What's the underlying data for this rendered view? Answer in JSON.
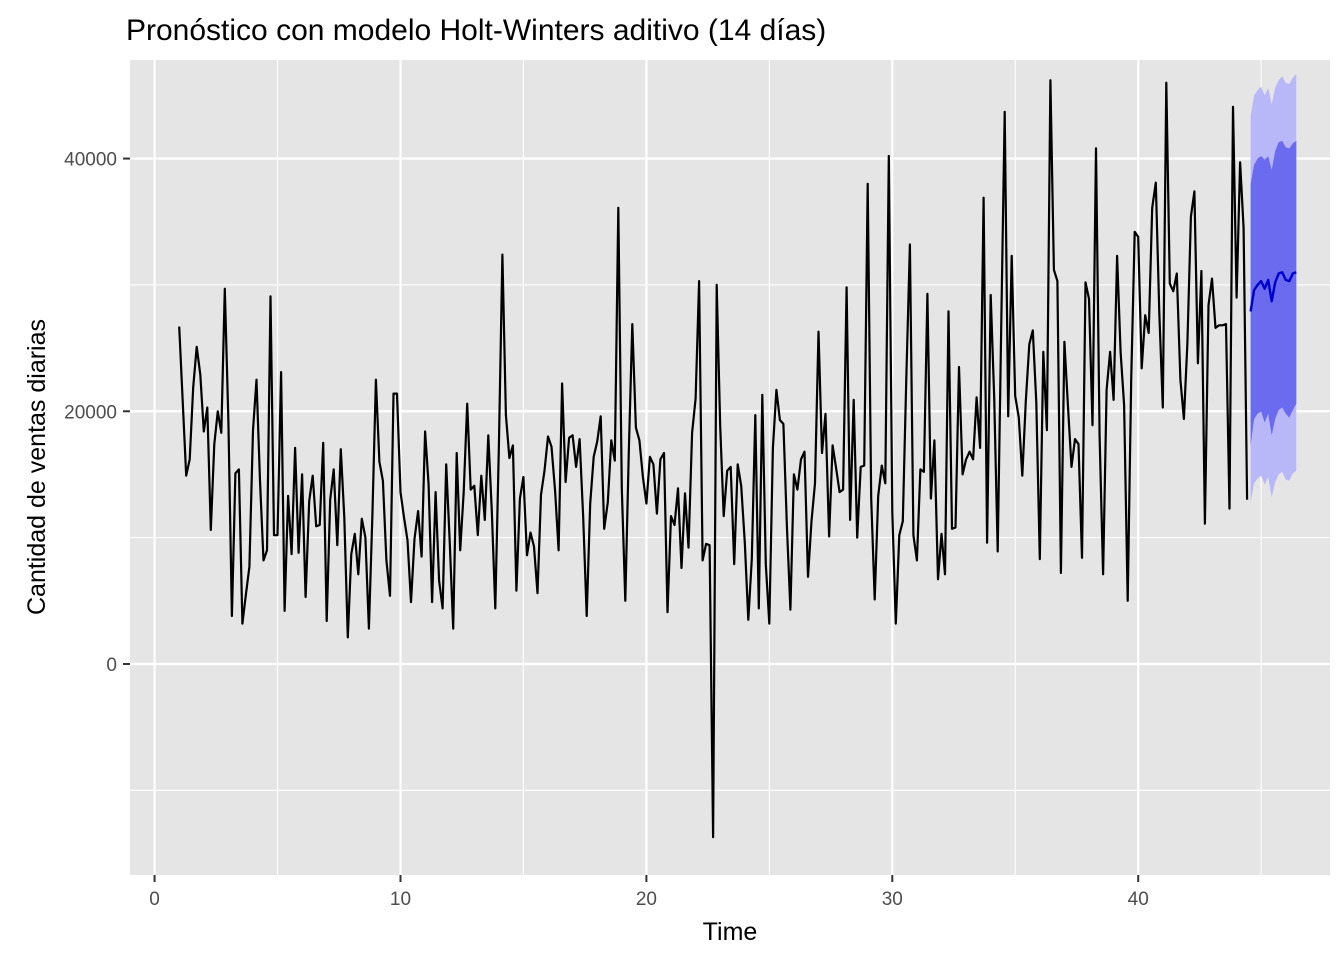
{
  "chart_data": {
    "type": "line",
    "title": "Pronóstico con modelo Holt-Winters aditivo (14 días)",
    "xlabel": "Time",
    "ylabel": "Cantidad de ventas diarias",
    "xlim": [
      -1.0,
      47.8
    ],
    "ylim": [
      -16700,
      47800
    ],
    "x_ticks": [
      0,
      10,
      20,
      30,
      40
    ],
    "y_ticks": [
      0,
      20000,
      40000
    ],
    "x_tick_labels": [
      "0",
      "10",
      "20",
      "30",
      "40"
    ],
    "y_tick_labels": [
      "0",
      "20000",
      "40000"
    ],
    "grid": true,
    "legend": "none",
    "colors": {
      "panel": "#e5e5e5",
      "grid": "#ffffff",
      "observed": "#000000",
      "forecast": "#0000cc",
      "band80": "#6b6bf0",
      "band95": "#b8b8f8"
    },
    "observed": {
      "x_start": 1,
      "x_step": 0.142857,
      "values": [
        26700,
        20800,
        14900,
        16200,
        21900,
        25100,
        22900,
        18400,
        20300,
        10600,
        17400,
        20000,
        18300,
        29700,
        19200,
        3800,
        15100,
        15400,
        3200,
        5500,
        7700,
        18500,
        22500,
        14500,
        8200,
        9000,
        29100,
        10200,
        10200,
        23100,
        4200,
        13300,
        8700,
        17100,
        8800,
        15000,
        5300,
        12900,
        14900,
        10900,
        11000,
        17500,
        3400,
        13000,
        15400,
        9400,
        17000,
        11600,
        2100,
        8700,
        10300,
        7100,
        11500,
        10000,
        2800,
        11800,
        22500,
        16000,
        14500,
        8200,
        5400,
        21400,
        21400,
        13600,
        11600,
        9800,
        4900,
        9900,
        12100,
        8500,
        18400,
        14200,
        4900,
        13600,
        6600,
        4400,
        15800,
        9700,
        2800,
        16700,
        9000,
        13600,
        20600,
        13800,
        14100,
        10200,
        14900,
        11400,
        18100,
        12100,
        4400,
        17300,
        32400,
        19700,
        16300,
        17300,
        5800,
        13100,
        14800,
        8600,
        10400,
        9300,
        5600,
        13400,
        15300,
        18000,
        17200,
        13700,
        9000,
        22200,
        14400,
        17900,
        18100,
        15600,
        17800,
        11600,
        3800,
        12700,
        16400,
        17600,
        19600,
        10700,
        12800,
        17700,
        16100,
        36100,
        13900,
        5000,
        16800,
        26900,
        18700,
        17700,
        14800,
        12700,
        16400,
        15800,
        11900,
        16200,
        16700,
        4100,
        11700,
        11000,
        13900,
        7600,
        13500,
        9200,
        18300,
        21000,
        30300,
        8200,
        9500,
        9400,
        -13700,
        30000,
        18800,
        11700,
        15300,
        15600,
        7900,
        15800,
        14100,
        9600,
        3500,
        8300,
        19700,
        4400,
        21300,
        7900,
        3200,
        17100,
        21700,
        19300,
        19000,
        10900,
        4300,
        15000,
        13800,
        16200,
        16800,
        6900,
        11300,
        14300,
        26300,
        16700,
        19800,
        10100,
        17300,
        15500,
        13600,
        13800,
        29800,
        11400,
        20900,
        10000,
        15600,
        15700,
        38000,
        13100,
        5100,
        13300,
        15700,
        14300,
        40200,
        12000,
        3200,
        10200,
        11300,
        22600,
        33200,
        10200,
        8200,
        15400,
        15200,
        29300,
        13100,
        17700,
        6700,
        10300,
        7100,
        27900,
        10700,
        10800,
        23500,
        15000,
        16200,
        16800,
        16200,
        21100,
        17100,
        36900,
        9600,
        29200,
        21100,
        8900,
        26600,
        43700,
        19600,
        32300,
        21200,
        19500,
        14900,
        20800,
        25300,
        26400,
        20700,
        8300,
        24700,
        18500,
        46200,
        31200,
        30300,
        7200,
        25500,
        20500,
        15600,
        17800,
        17400,
        8400,
        30200,
        28900,
        18900,
        40800,
        18000,
        7100,
        21700,
        24700,
        20900,
        32300,
        24700,
        20500,
        5000,
        22500,
        34200,
        33800,
        23400,
        27600,
        26200,
        36100,
        38100,
        27800,
        20300,
        46000,
        30100,
        29500,
        30900,
        22500,
        19400,
        25400,
        35400,
        37400,
        23800,
        31100,
        11100,
        28400,
        30500,
        26600,
        26800,
        26800,
        26900,
        12300,
        44100,
        29000,
        39700,
        34500,
        13000
      ]
    },
    "forecast": {
      "x": [
        44.571,
        44.714,
        44.857,
        45.0,
        45.143,
        45.286,
        45.429,
        45.571,
        45.714,
        45.857,
        46.0,
        46.143,
        46.286,
        46.429
      ],
      "mean": [
        27900,
        29600,
        30000,
        30300,
        29700,
        30400,
        28700,
        30200,
        30900,
        31000,
        30400,
        30300,
        30900,
        31000
      ],
      "lo80": [
        17300,
        19400,
        19800,
        20000,
        19100,
        19800,
        18100,
        19400,
        20100,
        20300,
        19800,
        19500,
        20100,
        20600
      ],
      "hi80": [
        38000,
        39500,
        40000,
        40200,
        39900,
        40200,
        39100,
        40600,
        41300,
        41400,
        40900,
        40800,
        41200,
        41400
      ],
      "lo95": [
        12800,
        14300,
        14700,
        14900,
        14200,
        14800,
        13200,
        14400,
        15000,
        15200,
        14600,
        14500,
        15100,
        15300
      ],
      "hi95": [
        43400,
        45000,
        45400,
        45700,
        45000,
        45600,
        44300,
        45600,
        46200,
        46500,
        46000,
        45900,
        46400,
        46700
      ]
    }
  }
}
